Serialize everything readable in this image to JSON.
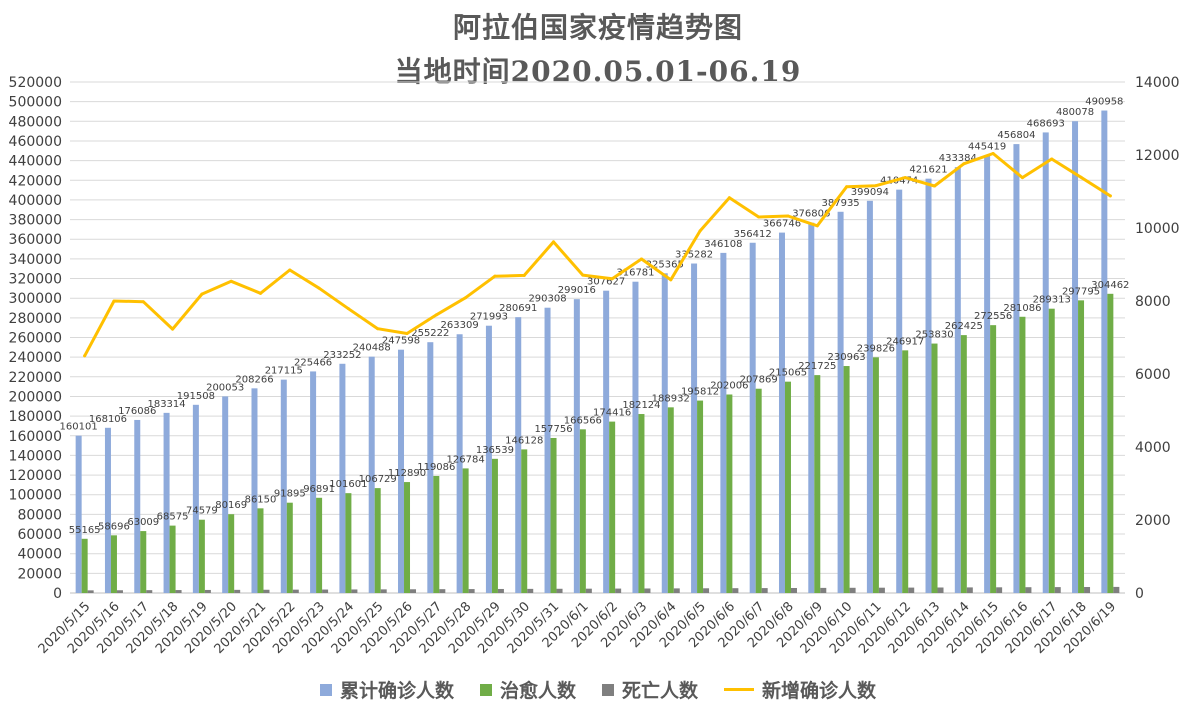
{
  "title": "阿拉伯国家疫情趋势图",
  "subtitle": "当地时间2020.05.01-06.19",
  "colors": {
    "cumulative": "#8eaadb",
    "recovered": "#70ad47",
    "deaths": "#7f7f7f",
    "new": "#ffc000",
    "grid": "#d9d9d9",
    "axis_text": "#404040"
  },
  "chart_data": {
    "type": "bar",
    "categories": [
      "2020/5/15",
      "2020/5/16",
      "2020/5/17",
      "2020/5/18",
      "2020/5/19",
      "2020/5/20",
      "2020/5/21",
      "2020/5/22",
      "2020/5/23",
      "2020/5/24",
      "2020/5/25",
      "2020/5/26",
      "2020/5/27",
      "2020/5/28",
      "2020/5/29",
      "2020/5/30",
      "2020/5/31",
      "2020/6/1",
      "2020/6/2",
      "2020/6/3",
      "2020/6/4",
      "2020/6/5",
      "2020/6/6",
      "2020/6/7",
      "2020/6/8",
      "2020/6/9",
      "2020/6/10",
      "2020/6/11",
      "2020/6/12",
      "2020/6/13",
      "2020/6/14",
      "2020/6/15",
      "2020/6/16",
      "2020/6/17",
      "2020/6/18",
      "2020/6/19"
    ],
    "series": [
      {
        "name": "累计确诊人数",
        "type": "bar",
        "axis": "left",
        "values": [
          160101,
          168106,
          176086,
          183314,
          191508,
          200053,
          208266,
          217115,
          225466,
          233252,
          240488,
          247598,
          255222,
          263309,
          271993,
          280691,
          290308,
          299016,
          307627,
          316781,
          325365,
          335282,
          346108,
          356412,
          366746,
          376806,
          387935,
          399094,
          410474,
          421621,
          433384,
          445419,
          456804,
          468693,
          480078,
          490958
        ]
      },
      {
        "name": "治愈人数",
        "type": "bar",
        "axis": "left",
        "values": [
          55165,
          58696,
          63009,
          68575,
          74579,
          80169,
          86150,
          91895,
          96891,
          101601,
          106729,
          112890,
          119086,
          126784,
          136539,
          146128,
          157756,
          166566,
          174416,
          182124,
          188932,
          195812,
          202006,
          207869,
          215065,
          221725,
          230963,
          239826,
          246917,
          253830,
          262425,
          272556,
          281086,
          289313,
          297795,
          304462
        ]
      },
      {
        "name": "死亡人数",
        "type": "bar",
        "axis": "left",
        "values": [
          2700,
          2800,
          2900,
          3000,
          3100,
          3200,
          3300,
          3400,
          3500,
          3600,
          3700,
          3800,
          3900,
          4000,
          4100,
          4200,
          4300,
          4400,
          4500,
          4600,
          4700,
          4800,
          4900,
          5000,
          5100,
          5200,
          5300,
          5400,
          5500,
          5600,
          5700,
          5800,
          5900,
          6000,
          6100,
          6200
        ]
      },
      {
        "name": "新增确诊人数",
        "type": "line",
        "axis": "right",
        "values": [
          6500,
          8000,
          7980,
          7230,
          8190,
          8540,
          8210,
          8850,
          8350,
          7790,
          7240,
          7110,
          7620,
          8090,
          8680,
          8700,
          9620,
          8710,
          8610,
          9150,
          8580,
          9920,
          10830,
          10300,
          10330,
          10060,
          11130,
          11160,
          11380,
          11150,
          11760,
          12040,
          11380,
          11890,
          11390,
          10880
        ]
      }
    ],
    "y_left": {
      "min": 0,
      "max": 520000,
      "step": 20000
    },
    "y_right": {
      "min": 0,
      "max": 14000,
      "step": 2000
    },
    "legend_position": "bottom",
    "grid": true
  }
}
